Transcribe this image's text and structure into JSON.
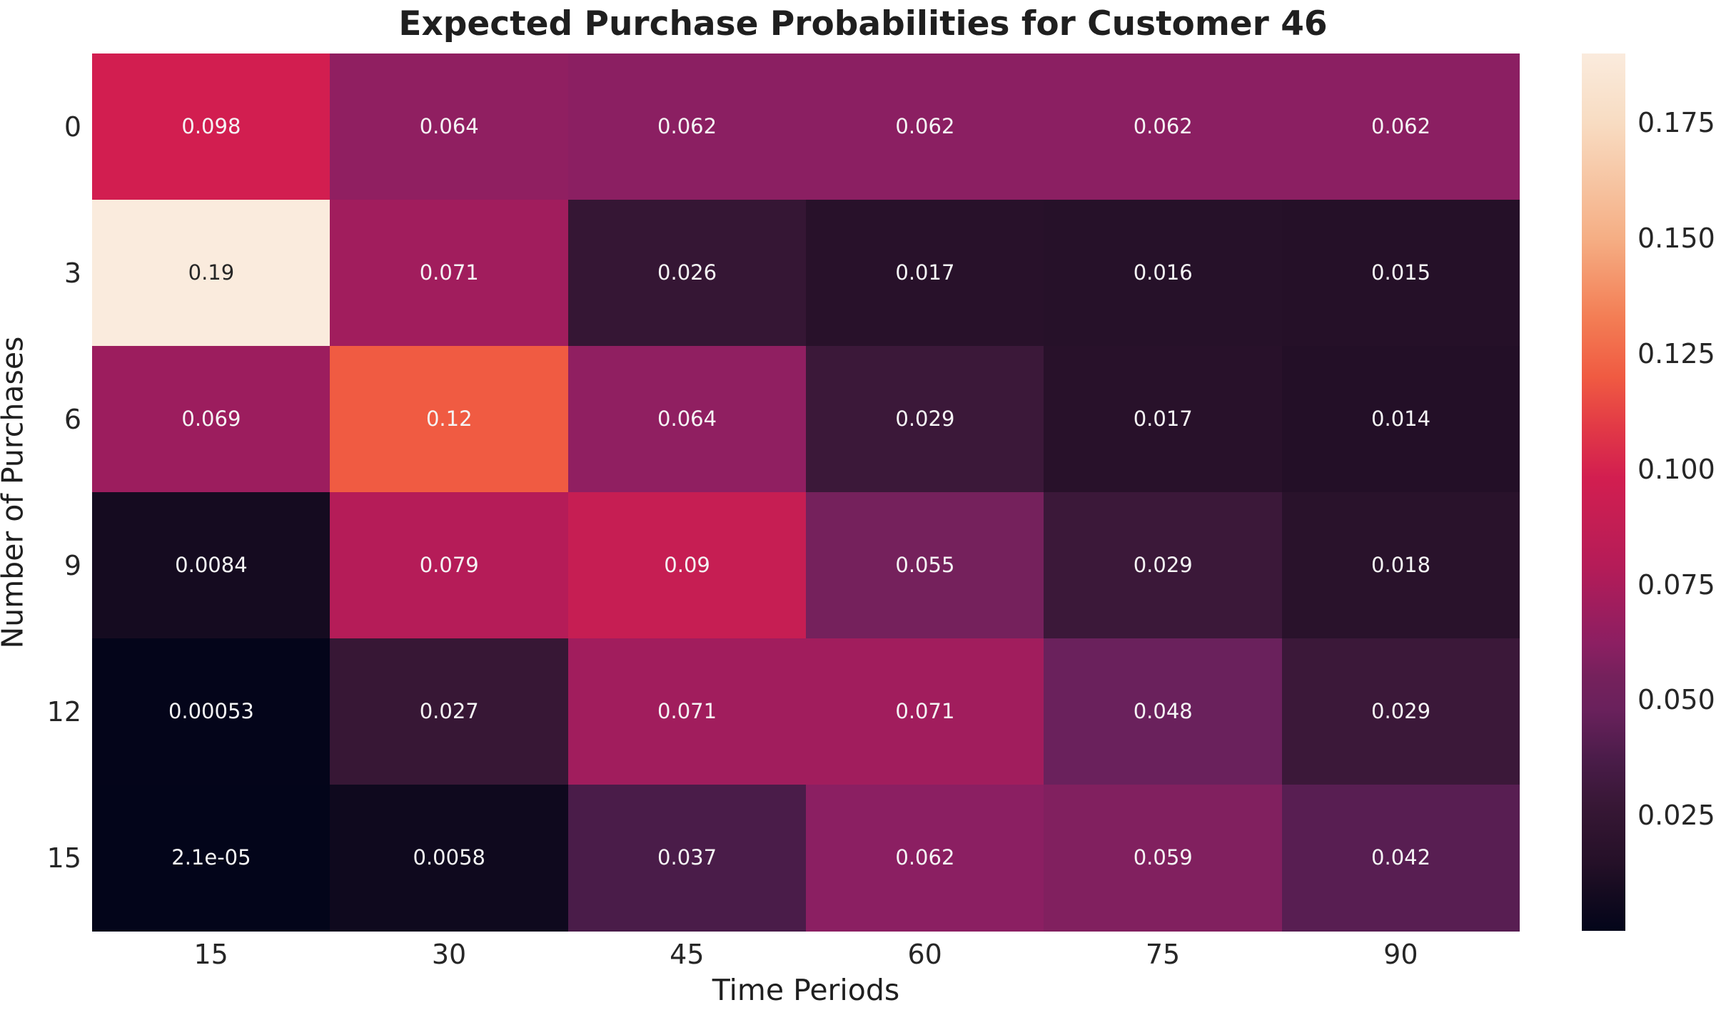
{
  "title": "Expected Purchase Probabilities for Customer 46",
  "chart_data": {
    "type": "heatmap",
    "title": "Expected Purchase Probabilities for Customer 46",
    "xlabel": "Time Periods",
    "ylabel": "Number of Purchases",
    "x_ticks": [
      "15",
      "30",
      "45",
      "60",
      "75",
      "90"
    ],
    "y_ticks": [
      "0",
      "3",
      "6",
      "9",
      "12",
      "15"
    ],
    "values": [
      [
        0.098,
        0.064,
        0.062,
        0.062,
        0.062,
        0.062
      ],
      [
        0.19,
        0.071,
        0.026,
        0.017,
        0.016,
        0.015
      ],
      [
        0.069,
        0.12,
        0.064,
        0.029,
        0.017,
        0.014
      ],
      [
        0.0084,
        0.079,
        0.09,
        0.055,
        0.029,
        0.018
      ],
      [
        0.00053,
        0.027,
        0.071,
        0.071,
        0.048,
        0.029
      ],
      [
        2.1e-05,
        0.0058,
        0.037,
        0.062,
        0.059,
        0.042
      ]
    ],
    "annotations": [
      [
        "0.098",
        "0.064",
        "0.062",
        "0.062",
        "0.062",
        "0.062"
      ],
      [
        "0.19",
        "0.071",
        "0.026",
        "0.017",
        "0.016",
        "0.015"
      ],
      [
        "0.069",
        "0.12",
        "0.064",
        "0.029",
        "0.017",
        "0.014"
      ],
      [
        "0.0084",
        "0.079",
        "0.09",
        "0.055",
        "0.029",
        "0.018"
      ],
      [
        "0.00053",
        "0.027",
        "0.071",
        "0.071",
        "0.048",
        "0.029"
      ],
      [
        "2.1e-05",
        "0.0058",
        "0.037",
        "0.062",
        "0.059",
        "0.042"
      ]
    ],
    "vmin": 2.1e-05,
    "vmax": 0.19,
    "grid": false,
    "colorbar": {
      "position": "right",
      "tick_labels": [
        "0.175",
        "0.150",
        "0.125",
        "0.100",
        "0.075",
        "0.050",
        "0.025"
      ],
      "tick_values": [
        0.175,
        0.15,
        0.125,
        0.1,
        0.075,
        0.05,
        0.025
      ]
    },
    "colormap": {
      "name": "rocket",
      "stops": [
        [
          0.0,
          "#03051A"
        ],
        [
          0.044,
          "#150B20"
        ],
        [
          0.079,
          "#251028"
        ],
        [
          0.142,
          "#371735"
        ],
        [
          0.195,
          "#4A1C49"
        ],
        [
          0.253,
          "#6A215C"
        ],
        [
          0.29,
          "#75215C"
        ],
        [
          0.326,
          "#8B1F62"
        ],
        [
          0.374,
          "#A11D5D"
        ],
        [
          0.416,
          "#B51C58"
        ],
        [
          0.474,
          "#C61E53"
        ],
        [
          0.516,
          "#D21E50"
        ],
        [
          0.575,
          "#E23A46"
        ],
        [
          0.632,
          "#F05B42"
        ],
        [
          0.7,
          "#F37E55"
        ],
        [
          0.789,
          "#F5AE84"
        ],
        [
          0.921,
          "#F8DCC2"
        ],
        [
          1.0,
          "#FAEBDD"
        ]
      ]
    },
    "annotation_text_colors": {
      "light_cell": "#262626",
      "dark_cell": "#F5F5F5"
    },
    "title_color": "#1f1f1f",
    "tick_color": "#262626"
  }
}
